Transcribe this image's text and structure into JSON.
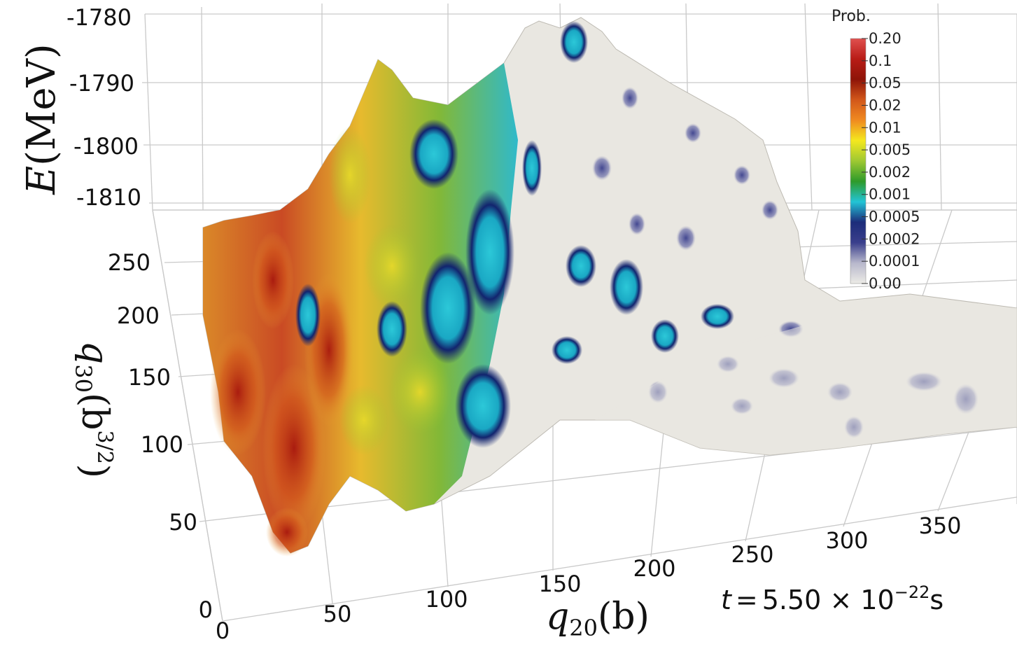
{
  "chart_data": {
    "type": "surface",
    "axes": {
      "e": {
        "label_main": "E",
        "label_unit": "(MeV)",
        "ticks": [
          "-1780",
          "-1790",
          "-1800",
          "-1810"
        ]
      },
      "q30": {
        "label_main": "q",
        "label_sub": "30",
        "label_unit": "(b",
        "label_sup": "3/2",
        "label_close": ")",
        "ticks": [
          "250",
          "200",
          "150",
          "100",
          "50",
          "0"
        ]
      },
      "q20": {
        "label_main": "q",
        "label_sub": "20",
        "label_unit": "(b)",
        "ticks": [
          "0",
          "50",
          "100",
          "150",
          "200",
          "250",
          "300",
          "350"
        ]
      }
    },
    "colorbar": {
      "title": "Prob.",
      "scale": "log",
      "labels": [
        "0.20",
        "0.1",
        "0.05",
        "0.02",
        "0.01",
        "0.005",
        "0.002",
        "0.001",
        "0.0005",
        "0.0002",
        "0.0001",
        "0.00"
      ],
      "colors": [
        "#e0504e",
        "#b81c16",
        "#8e1408",
        "#d2571a",
        "#f08a20",
        "#f4e81e",
        "#9ec832",
        "#2e9a2a",
        "#22c4d6",
        "#1c2c7a",
        "#3a3f8c",
        "#b8b8cc",
        "#ecebe6"
      ]
    },
    "time": {
      "var": "t",
      "eq": "=",
      "value": "5.50 × 10",
      "exp": "−22",
      "unit": "s"
    }
  }
}
